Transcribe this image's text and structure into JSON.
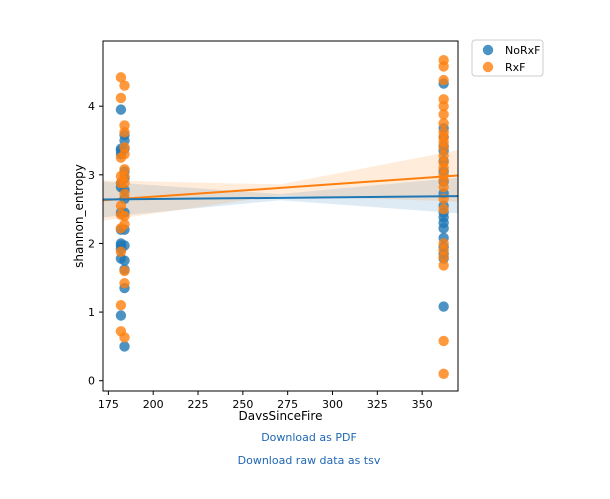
{
  "chart_data": {
    "type": "scatter",
    "xlabel": "DaysSinceFire",
    "ylabel": "shannon_entropy",
    "xlim": [
      172,
      370
    ],
    "ylim": [
      -0.15,
      4.95
    ],
    "xticks": [
      175,
      200,
      225,
      250,
      275,
      300,
      325,
      350
    ],
    "yticks": [
      0,
      1,
      2,
      3,
      4
    ],
    "grid": false,
    "legend_position": "outside-top-right",
    "regression": true,
    "series": [
      {
        "name": "NoRxF",
        "color": "#1f77b4",
        "regression_line": [
          [
            172,
            2.64
          ],
          [
            370,
            2.69
          ]
        ],
        "ci_band_upper": [
          [
            172,
            2.9
          ],
          [
            271,
            2.72
          ],
          [
            370,
            2.96
          ]
        ],
        "ci_band_lower": [
          [
            172,
            2.38
          ],
          [
            271,
            2.63
          ],
          [
            370,
            2.44
          ]
        ],
        "points": [
          [
            182,
            3.95
          ],
          [
            182,
            3.38
          ],
          [
            182,
            3.35
          ],
          [
            182,
            3.3
          ],
          [
            182,
            2.88
          ],
          [
            182,
            2.82
          ],
          [
            182,
            2.45
          ],
          [
            182,
            2.2
          ],
          [
            182,
            2.0
          ],
          [
            182,
            1.97
          ],
          [
            182,
            1.92
          ],
          [
            182,
            1.78
          ],
          [
            182,
            0.95
          ],
          [
            184,
            3.58
          ],
          [
            184,
            3.5
          ],
          [
            184,
            3.38
          ],
          [
            184,
            3.05
          ],
          [
            184,
            2.95
          ],
          [
            184,
            2.78
          ],
          [
            184,
            2.65
          ],
          [
            184,
            2.45
          ],
          [
            184,
            2.2
          ],
          [
            184,
            1.97
          ],
          [
            184,
            1.75
          ],
          [
            184,
            1.62
          ],
          [
            184,
            1.35
          ],
          [
            184,
            0.5
          ],
          [
            362,
            4.33
          ],
          [
            362,
            3.68
          ],
          [
            362,
            3.55
          ],
          [
            362,
            3.42
          ],
          [
            362,
            3.35
          ],
          [
            362,
            3.2
          ],
          [
            362,
            3.05
          ],
          [
            362,
            2.9
          ],
          [
            362,
            2.73
          ],
          [
            362,
            2.55
          ],
          [
            362,
            2.45
          ],
          [
            362,
            2.38
          ],
          [
            362,
            2.3
          ],
          [
            362,
            2.22
          ],
          [
            362,
            2.08
          ],
          [
            362,
            1.95
          ],
          [
            362,
            1.85
          ],
          [
            362,
            1.78
          ],
          [
            362,
            1.08
          ]
        ]
      },
      {
        "name": "RxF",
        "color": "#ff7f0e",
        "regression_line": [
          [
            172,
            2.63
          ],
          [
            370,
            2.99
          ]
        ],
        "ci_band_upper": [
          [
            172,
            2.92
          ],
          [
            271,
            2.86
          ],
          [
            370,
            3.36
          ]
        ],
        "ci_band_lower": [
          [
            172,
            2.33
          ],
          [
            271,
            2.7
          ],
          [
            370,
            2.61
          ]
        ],
        "points": [
          [
            182,
            4.42
          ],
          [
            182,
            4.12
          ],
          [
            182,
            3.25
          ],
          [
            182,
            2.98
          ],
          [
            182,
            2.88
          ],
          [
            182,
            2.55
          ],
          [
            182,
            2.42
          ],
          [
            182,
            2.22
          ],
          [
            182,
            1.88
          ],
          [
            182,
            1.1
          ],
          [
            182,
            0.72
          ],
          [
            184,
            4.3
          ],
          [
            184,
            3.72
          ],
          [
            184,
            3.62
          ],
          [
            184,
            3.4
          ],
          [
            184,
            3.3
          ],
          [
            184,
            3.08
          ],
          [
            184,
            2.98
          ],
          [
            184,
            2.88
          ],
          [
            184,
            2.72
          ],
          [
            184,
            2.4
          ],
          [
            184,
            2.28
          ],
          [
            184,
            1.6
          ],
          [
            184,
            1.42
          ],
          [
            184,
            0.63
          ],
          [
            362,
            4.67
          ],
          [
            362,
            4.58
          ],
          [
            362,
            4.38
          ],
          [
            362,
            4.1
          ],
          [
            362,
            4.0
          ],
          [
            362,
            3.88
          ],
          [
            362,
            3.75
          ],
          [
            362,
            3.62
          ],
          [
            362,
            3.55
          ],
          [
            362,
            3.48
          ],
          [
            362,
            3.4
          ],
          [
            362,
            3.28
          ],
          [
            362,
            3.18
          ],
          [
            362,
            3.1
          ],
          [
            362,
            3.0
          ],
          [
            362,
            2.92
          ],
          [
            362,
            2.82
          ],
          [
            362,
            2.65
          ],
          [
            362,
            2.5
          ],
          [
            362,
            2.0
          ],
          [
            362,
            1.9
          ],
          [
            362,
            1.8
          ],
          [
            362,
            1.68
          ],
          [
            362,
            0.58
          ],
          [
            362,
            0.1
          ]
        ]
      }
    ]
  },
  "links": {
    "pdf": "Download as PDF",
    "tsv": "Download raw data as tsv"
  }
}
